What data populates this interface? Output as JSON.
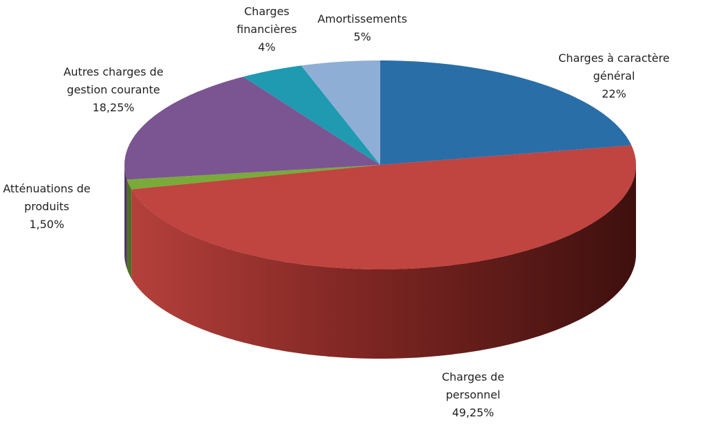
{
  "chart_data": {
    "type": "pie",
    "categories": [
      "Charges à caractère général",
      "Charges de personnel",
      "Atténuations de produits",
      "Autres charges de gestion courante",
      "Charges financières",
      "Amortissements"
    ],
    "values": [
      22,
      49.25,
      1.5,
      18.25,
      4,
      5
    ],
    "value_labels": [
      "22%",
      "49,25%",
      "1,50%",
      "18,25%",
      "4%",
      "5%"
    ],
    "colors": [
      "#2a6ea8",
      "#c0443f",
      "#79aa3a",
      "#7a5592",
      "#1f9ab0",
      "#8eaed6"
    ]
  }
}
